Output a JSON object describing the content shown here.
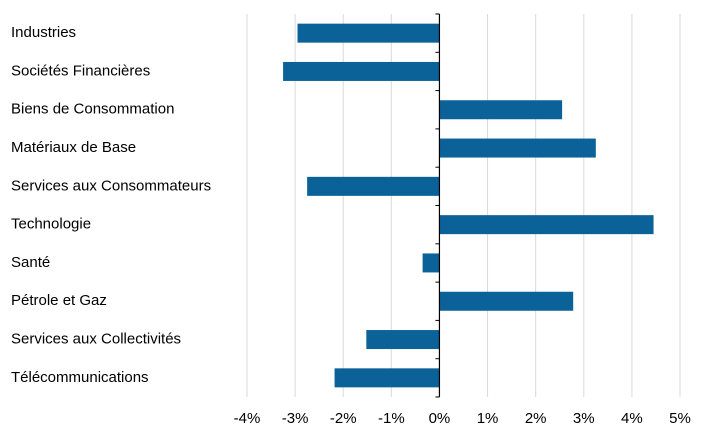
{
  "chart_data": {
    "type": "bar",
    "orientation": "horizontal",
    "categories": [
      "Industries",
      "Sociétés Financières",
      "Biens de Consommation",
      "Matériaux de Base",
      "Services aux Consommateurs",
      "Technologie",
      "Santé",
      "Pétrole et Gaz",
      "Services aux Collectivités",
      "Télécommunications"
    ],
    "values": [
      -2.95,
      -3.25,
      2.55,
      3.25,
      -2.75,
      4.45,
      -0.35,
      2.78,
      -1.52,
      -2.18
    ],
    "value_unit": "%",
    "xlim": [
      -4,
      5
    ],
    "xticks": [
      "-4%",
      "-3%",
      "-2%",
      "-1%",
      "0%",
      "1%",
      "2%",
      "3%",
      "4%",
      "5%"
    ],
    "title": "",
    "xlabel": "",
    "ylabel": "",
    "grid": "vertical",
    "legend": "none",
    "colors": {
      "bar": "#0a6299",
      "grid": "#d9d9d9",
      "axis": "#000000"
    }
  }
}
